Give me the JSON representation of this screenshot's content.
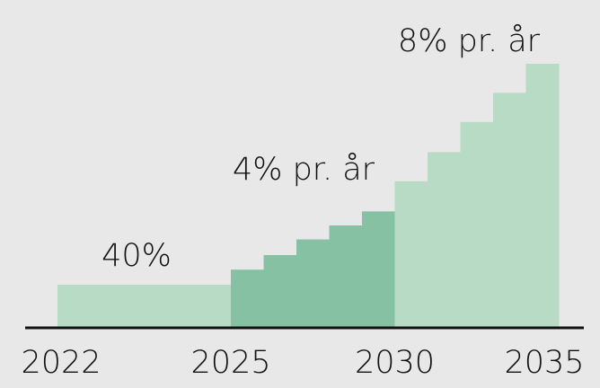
{
  "chart_data": {
    "type": "bar",
    "x_start": [
      2022,
      2025,
      2026,
      2027,
      2028,
      2029,
      2030,
      2031,
      2032,
      2033,
      2034
    ],
    "x_end": [
      2025,
      2026,
      2027,
      2028,
      2029,
      2030,
      2031,
      2032,
      2033,
      2034,
      2035
    ],
    "values": [
      40,
      54,
      67.5,
      82,
      95,
      108,
      136,
      163,
      191,
      218,
      245
    ],
    "colors": [
      "#b8dbc6",
      "#86c1a3",
      "#86c1a3",
      "#86c1a3",
      "#86c1a3",
      "#86c1a3",
      "#b8dbc6",
      "#b8dbc6",
      "#b8dbc6",
      "#b8dbc6",
      "#b8dbc6"
    ],
    "ylim": [
      0,
      250
    ],
    "xticks": [
      2022,
      2025,
      2030,
      2035
    ],
    "annotations": [
      "40%",
      "4% pr. år",
      "8% pr. år"
    ]
  }
}
